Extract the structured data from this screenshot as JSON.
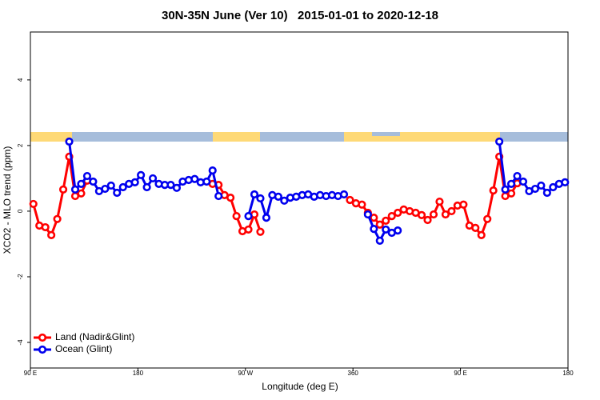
{
  "chart_data": {
    "type": "line",
    "title": "30N-35N June (Ver 10)   2015-01-01 to 2020-12-18",
    "x_label": "Longitude (deg E)",
    "y_label": "XCO2 - MLO trend (ppm)",
    "xlim": [
      90,
      540
    ],
    "ylim": [
      -4.78,
      5.46
    ],
    "xticks": [
      {
        "value": 90,
        "label": "90 E"
      },
      180,
      {
        "value": 270,
        "label": "90 W"
      },
      360,
      {
        "value": 450,
        "label": "90 E"
      },
      {
        "value": 540,
        "label": "180"
      }
    ],
    "yticks": [
      -4,
      -2,
      0,
      2,
      4
    ],
    "legend": "bottom-left",
    "series": [
      {
        "name": "Land (Nadir&Glint)",
        "color": "#ff0000",
        "x": [
          92.5,
          97.5,
          102.5,
          107.5,
          112.5,
          117.5,
          122.5,
          127.5,
          132.5,
          137.5,
          null,
          242.5,
          247.5,
          252.5,
          257.5,
          262.5,
          267.5,
          272.5,
          277.5,
          282.5,
          null,
          357.5,
          362.5,
          367.5,
          372.5,
          377.5,
          382.5,
          387.5,
          392.5,
          397.5,
          402.5,
          407.5,
          412.5,
          417.5,
          422.5,
          427.5,
          432.5,
          437.5,
          442.5,
          447.5,
          452.5,
          457.5,
          462.5,
          467.5,
          472.5,
          477.5,
          482.5,
          487.5,
          492.5,
          497.5
        ],
        "values": [
          0.22,
          -0.44,
          -0.49,
          -0.73,
          -0.24,
          0.66,
          1.66,
          0.46,
          0.54,
          0.93,
          null,
          0.83,
          0.8,
          0.49,
          0.41,
          -0.15,
          -0.61,
          -0.56,
          -0.1,
          -0.63,
          null,
          0.34,
          0.24,
          0.2,
          -0.05,
          -0.2,
          -0.41,
          -0.29,
          -0.15,
          -0.05,
          0.05,
          0,
          -0.05,
          -0.12,
          -0.27,
          -0.1,
          0.29,
          -0.1,
          0,
          0.17,
          0.2,
          -0.44,
          -0.51,
          -0.73,
          -0.24,
          0.63,
          1.66,
          0.46,
          0.54,
          0.85
        ]
      },
      {
        "name": "Ocean (Glint)",
        "color": "#0000ee",
        "x": [
          122.5,
          127.5,
          132.5,
          137.5,
          142.5,
          147.5,
          152.5,
          157.5,
          162.5,
          167.5,
          172.5,
          177.5,
          182.5,
          187.5,
          192.5,
          197.5,
          202.5,
          207.5,
          212.5,
          217.5,
          222.5,
          227.5,
          232.5,
          237.5,
          242.5,
          247.5,
          null,
          272.5,
          277.5,
          282.5,
          287.5,
          292.5,
          297.5,
          302.5,
          307.5,
          312.5,
          317.5,
          322.5,
          327.5,
          332.5,
          337.5,
          342.5,
          347.5,
          352.5,
          null,
          372.5,
          377.5,
          382.5,
          387.5,
          392.5,
          397.5,
          null,
          482.5,
          487.5,
          492.5,
          497.5,
          502.5,
          507.5,
          512.5,
          517.5,
          522.5,
          527.5,
          532.5,
          537.5
        ],
        "values": [
          2.12,
          0.66,
          0.83,
          1.07,
          0.9,
          0.61,
          0.68,
          0.78,
          0.56,
          0.73,
          0.83,
          0.88,
          1.1,
          0.73,
          1.0,
          0.83,
          0.8,
          0.8,
          0.71,
          0.9,
          0.95,
          0.98,
          0.88,
          0.9,
          1.24,
          0.46,
          null,
          -0.15,
          0.51,
          0.39,
          -0.2,
          0.49,
          0.44,
          0.32,
          0.41,
          0.44,
          0.49,
          0.51,
          0.44,
          0.49,
          0.46,
          0.49,
          0.46,
          0.51,
          null,
          -0.1,
          -0.54,
          -0.9,
          -0.56,
          -0.66,
          -0.59,
          null,
          2.12,
          0.66,
          0.83,
          1.07,
          0.9,
          0.61,
          0.68,
          0.78,
          0.56,
          0.73,
          0.83,
          0.88
        ]
      }
    ]
  }
}
